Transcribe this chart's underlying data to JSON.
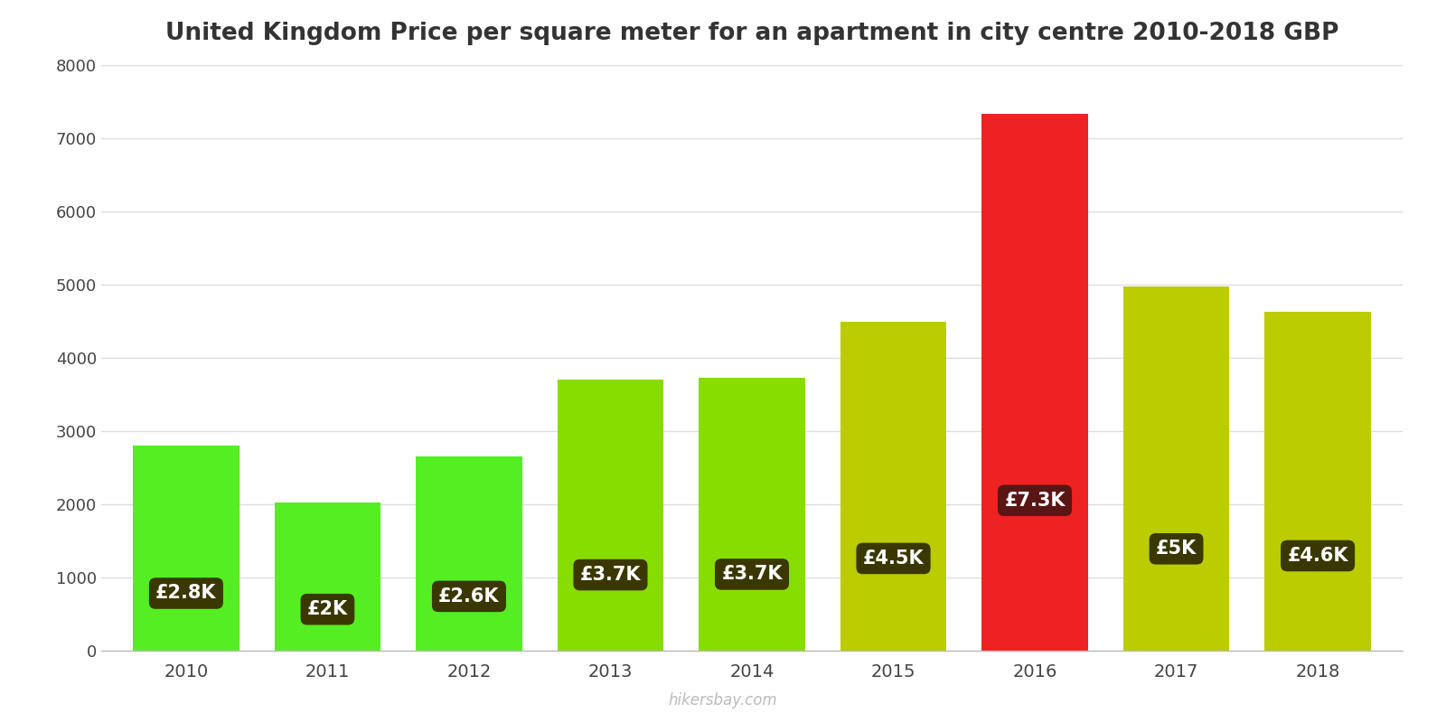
{
  "title": "United Kingdom Price per square meter for an apartment in city centre 2010-2018 GBP",
  "years": [
    2010,
    2011,
    2012,
    2013,
    2014,
    2015,
    2016,
    2017,
    2018
  ],
  "values": [
    2800,
    2020,
    2650,
    3700,
    3730,
    4500,
    7330,
    4970,
    4630
  ],
  "bar_colors": [
    "#55ee22",
    "#55ee22",
    "#55ee22",
    "#88dd00",
    "#88dd00",
    "#bbcc00",
    "#ee2222",
    "#bbcc00",
    "#bbcc00"
  ],
  "labels": [
    "£2.8K",
    "£2K",
    "£2.6K",
    "£3.7K",
    "£3.7K",
    "£4.5K",
    "£7.3K",
    "£5K",
    "£4.6K"
  ],
  "label_box_color": "#3a3800",
  "label_box_color_red": "#5a1515",
  "label_text_color": "#ffffff",
  "ylim": [
    0,
    8000
  ],
  "yticks": [
    0,
    1000,
    2000,
    3000,
    4000,
    5000,
    6000,
    7000,
    8000
  ],
  "background_color": "#ffffff",
  "grid_color": "#dddddd",
  "watermark": "hikersbay.com",
  "title_fontsize": 19,
  "label_fontsize": 15,
  "bar_width": 0.75
}
